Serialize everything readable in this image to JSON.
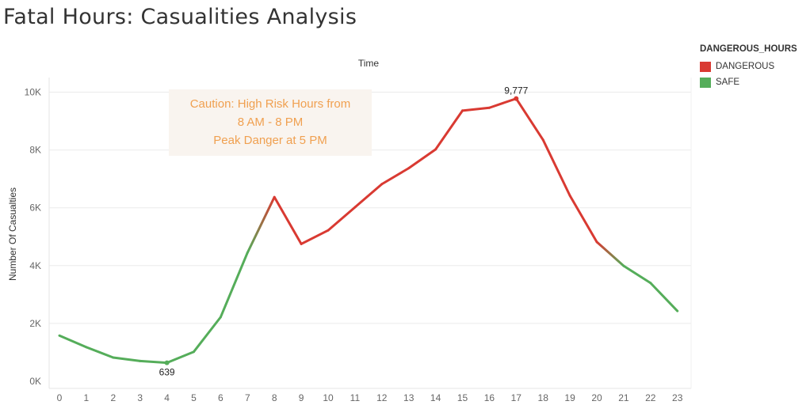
{
  "title": "Fatal Hours: Casualities Analysis",
  "legend": {
    "title": "DANGEROUS_HOURS",
    "items": [
      {
        "label": "DANGEROUS",
        "color": "#d93a32"
      },
      {
        "label": "SAFE",
        "color": "#55ad5a"
      }
    ]
  },
  "annotation": {
    "lines": [
      "Caution: High Risk Hours from",
      "8 AM - 8 PM",
      "Peak Danger at 5 PM"
    ]
  },
  "chart_data": {
    "type": "line",
    "title": "",
    "xlabel": "Time",
    "ylabel": "Number Of Casualties",
    "x": [
      0,
      1,
      2,
      3,
      4,
      5,
      6,
      7,
      8,
      9,
      10,
      11,
      12,
      13,
      14,
      15,
      16,
      17,
      18,
      19,
      20,
      21,
      22,
      23
    ],
    "series": [
      {
        "values": [
          1580,
          1180,
          820,
          700,
          639,
          1020,
          2220,
          4450,
          6370,
          4750,
          5220,
          6020,
          6820,
          7370,
          8020,
          9360,
          9460,
          9777,
          8350,
          6420,
          4820,
          3990,
          3400,
          2430
        ],
        "hour_class": [
          "SAFE",
          "SAFE",
          "SAFE",
          "SAFE",
          "SAFE",
          "SAFE",
          "SAFE",
          "SAFE",
          "DANGEROUS",
          "DANGEROUS",
          "DANGEROUS",
          "DANGEROUS",
          "DANGEROUS",
          "DANGEROUS",
          "DANGEROUS",
          "DANGEROUS",
          "DANGEROUS",
          "DANGEROUS",
          "DANGEROUS",
          "DANGEROUS",
          "DANGEROUS",
          "SAFE",
          "SAFE",
          "SAFE"
        ]
      }
    ],
    "ylim": [
      0,
      10000
    ],
    "yticks": [
      0,
      2000,
      4000,
      6000,
      8000,
      10000
    ],
    "ytick_labels": [
      "0K",
      "2K",
      "4K",
      "6K",
      "8K",
      "10K"
    ],
    "data_labels": [
      {
        "x": 4,
        "text": "639"
      },
      {
        "x": 17,
        "text": "9,777"
      }
    ],
    "grid": true,
    "legend_position": "top-right"
  }
}
